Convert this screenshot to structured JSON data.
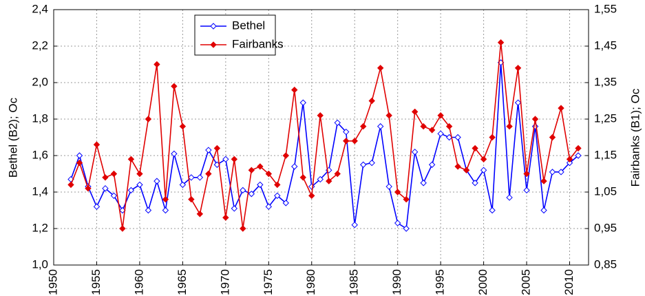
{
  "chart_data": {
    "type": "line",
    "ylabel": "Bethel (B2); Oc",
    "y2label": "Fairbanks (B1); Oc",
    "x": [
      1952,
      1953,
      1954,
      1955,
      1956,
      1957,
      1958,
      1959,
      1960,
      1961,
      1962,
      1963,
      1964,
      1965,
      1966,
      1967,
      1968,
      1969,
      1970,
      1971,
      1972,
      1973,
      1974,
      1975,
      1976,
      1977,
      1978,
      1979,
      1980,
      1981,
      1982,
      1983,
      1984,
      1985,
      1986,
      1987,
      1988,
      1989,
      1990,
      1991,
      1992,
      1993,
      1994,
      1995,
      1996,
      1997,
      1998,
      1999,
      2000,
      2001,
      2002,
      2003,
      2004,
      2005,
      2006,
      2007,
      2008,
      2009,
      2010,
      2011
    ],
    "series": [
      {
        "name": "Bethel",
        "color": "#0000ff",
        "marker": "open-diamond",
        "values": [
          1.47,
          1.6,
          1.43,
          1.32,
          1.42,
          1.38,
          1.3,
          1.41,
          1.44,
          1.3,
          1.46,
          1.3,
          1.61,
          1.44,
          1.48,
          1.48,
          1.63,
          1.55,
          1.58,
          1.31,
          1.41,
          1.39,
          1.44,
          1.32,
          1.38,
          1.34,
          1.54,
          1.89,
          1.43,
          1.47,
          1.52,
          1.78,
          1.73,
          1.22,
          1.55,
          1.56,
          1.76,
          1.43,
          1.23,
          1.2,
          1.62,
          1.45,
          1.55,
          1.72,
          1.7,
          1.7,
          1.52,
          1.45,
          1.52,
          1.3,
          2.11,
          1.37,
          1.89,
          1.41,
          1.76,
          1.3,
          1.51,
          1.51,
          1.56,
          1.6
        ]
      },
      {
        "name": "Fairbanks",
        "color": "#e00000",
        "marker": "filled-diamond",
        "axis": "y2",
        "values": [
          1.07,
          1.13,
          1.06,
          1.18,
          1.09,
          1.1,
          0.95,
          1.14,
          1.1,
          1.25,
          1.4,
          1.03,
          1.34,
          1.23,
          1.03,
          0.99,
          1.1,
          1.17,
          0.98,
          1.14,
          0.95,
          1.11,
          1.12,
          1.1,
          1.07,
          1.15,
          1.33,
          1.09,
          1.04,
          1.26,
          1.08,
          1.1,
          1.19,
          1.19,
          1.23,
          1.3,
          1.39,
          1.26,
          1.05,
          1.03,
          1.27,
          1.23,
          1.22,
          1.26,
          1.23,
          1.12,
          1.11,
          1.17,
          1.14,
          1.2,
          1.46,
          1.23,
          1.39,
          1.1,
          1.25,
          1.08,
          1.2,
          1.28,
          1.14,
          1.17
        ]
      }
    ],
    "xlim": [
      1950,
      2012.2
    ],
    "xticks": [
      1950,
      1955,
      1960,
      1965,
      1970,
      1975,
      1980,
      1985,
      1990,
      1995,
      2000,
      2005,
      2010
    ],
    "ylim": [
      1.0,
      2.4
    ],
    "yticks": [
      {
        "value": 1.0,
        "label": "1,0"
      },
      {
        "value": 1.2,
        "label": "1,2"
      },
      {
        "value": 1.4,
        "label": "1,4"
      },
      {
        "value": 1.6,
        "label": "1,6"
      },
      {
        "value": 1.8,
        "label": "1,8"
      },
      {
        "value": 2.0,
        "label": "2,0"
      },
      {
        "value": 2.2,
        "label": "2,2"
      },
      {
        "value": 2.4,
        "label": "2,4"
      }
    ],
    "y2lim": [
      0.85,
      1.55
    ],
    "y2ticks": [
      {
        "value": 0.85,
        "label": "0,85"
      },
      {
        "value": 0.95,
        "label": "0,95"
      },
      {
        "value": 1.05,
        "label": "1,05"
      },
      {
        "value": 1.15,
        "label": "1,15"
      },
      {
        "value": 1.25,
        "label": "1,25"
      },
      {
        "value": 1.35,
        "label": "1,35"
      },
      {
        "value": 1.45,
        "label": "1,45"
      },
      {
        "value": 1.55,
        "label": "1,55"
      }
    ],
    "grid": true
  }
}
